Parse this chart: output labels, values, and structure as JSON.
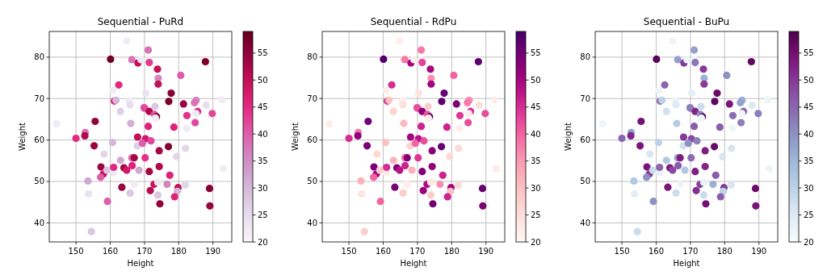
{
  "chart_data": [
    {
      "type": "scatter",
      "title": "Sequential - PuRd",
      "xlabel": "Height",
      "ylabel": "Weight",
      "xlim": [
        142.2,
        195.5
      ],
      "ylim": [
        35.4,
        86.2
      ],
      "xticks": [
        150,
        160,
        170,
        180,
        190
      ],
      "yticks": [
        40,
        50,
        60,
        70,
        80
      ],
      "clim": [
        20,
        59
      ],
      "cticks": [
        20,
        25,
        30,
        35,
        40,
        45,
        50,
        55
      ],
      "grid": true,
      "marker": "circle",
      "x": [
        150,
        152.7,
        152.6,
        155.6,
        155.3,
        144.3,
        154.5,
        153.5,
        153.7,
        158.2,
        157.3,
        158,
        157.2,
        159.2,
        159,
        160.9,
        161,
        160.7,
        160.1,
        162.5,
        160.8,
        161.2,
        161.7,
        163,
        163,
        164,
        164.8,
        163.4,
        164.8,
        165.5,
        165.8,
        166,
        166.3,
        168.1,
        165.8,
        167,
        166.3,
        167,
        166.4,
        168.4,
        167.9,
        168,
        170,
        171.1,
        169,
        171.1,
        171.4,
        173.8,
        174,
        174,
        170.4,
        177.8,
        177.1,
        181.4,
        180.6,
        187.8,
        185.1,
        184.6,
        188,
        192.6,
        185.5,
        185,
        182.4,
        189.8,
        184.8,
        182.3,
        178.6,
        173.1,
        169.9,
        171.4,
        172.9,
        173.5,
        173.2,
        171.1,
        170.3,
        171.9,
        169.4,
        177,
        174.3,
        182,
        179.4,
        170.2,
        174.3,
        171.4,
        177.4,
        172.8,
        173.9,
        176.6,
        179.8,
        179.6,
        181.9,
        189,
        178.8,
        173.9,
        171.7,
        174.5,
        189.1,
        193
      ],
      "values": [
        60.4,
        61.8,
        61,
        64.5,
        58.6,
        63.9,
        37.9,
        50.1,
        47,
        56.6,
        53.5,
        51.8,
        51,
        45.2,
        52.7,
        52.2,
        53.4,
        59.4,
        79.5,
        73.3,
        72,
        69.4,
        69.6,
        66.9,
        55.1,
        53.3,
        52.7,
        48.6,
        83.9,
        69.5,
        68.5,
        64,
        79.4,
        78.6,
        47.2,
        49.3,
        55.7,
        55.7,
        53.8,
        52.7,
        58.6,
        60.7,
        67.7,
        81.7,
        79.4,
        79.4,
        78.7,
        77.1,
        74.9,
        73.5,
        71.3,
        71.3,
        69.3,
        68.7,
        75.6,
        78.9,
        69.6,
        69,
        68.4,
        69.7,
        66.9,
        66.4,
        65.9,
        66.4,
        64.2,
        62.8,
        63.1,
        68.1,
        67.8,
        66.9,
        66.2,
        65.6,
        65.3,
        63.3,
        60.3,
        59.8,
        59.2,
        58.4,
        57.4,
        58,
        56,
        55.7,
        53.6,
        52.4,
        51.5,
        49.3,
        49.8,
        49.3,
        48.5,
        47.6,
        49.1,
        48.3,
        46.3,
        46.7,
        47.8,
        44.6,
        44.1,
        53.1
      ],
      "cvalues": [
        45,
        38,
        52,
        55,
        54,
        22,
        28,
        32,
        24,
        26,
        54,
        50,
        40,
        40,
        28,
        23,
        45,
        30,
        58,
        45,
        22,
        45,
        30,
        27,
        32,
        53,
        48,
        54,
        22,
        22,
        25,
        31,
        38,
        50,
        28,
        22,
        38,
        53,
        46,
        32,
        27,
        50,
        43,
        38,
        22,
        22,
        43,
        50,
        36,
        50,
        24,
        56,
        57,
        54,
        40,
        57,
        36,
        38,
        25,
        22,
        45,
        22,
        44,
        42,
        42,
        22,
        46,
        28,
        42,
        52,
        41,
        58,
        22,
        46,
        48,
        42,
        40,
        56,
        53,
        26,
        26,
        44,
        52,
        53,
        46,
        49,
        23,
        36,
        50,
        30,
        26,
        56,
        46,
        28,
        51,
        55,
        54,
        22
      ]
    },
    {
      "type": "scatter",
      "title": "Sequential - RdPu",
      "xlabel": "Height",
      "ylabel": "Weight",
      "xlim": [
        142.2,
        195.5
      ],
      "ylim": [
        35.4,
        86.2
      ],
      "xticks": [
        150,
        160,
        170,
        180,
        190
      ],
      "yticks": [
        40,
        50,
        60,
        70,
        80
      ],
      "clim": [
        20,
        59
      ],
      "cticks": [
        20,
        25,
        30,
        35,
        40,
        45,
        50,
        55
      ],
      "grid": true,
      "marker": "circle",
      "x": [
        150,
        152.7,
        152.6,
        155.6,
        155.3,
        144.3,
        154.5,
        153.5,
        153.7,
        158.2,
        157.3,
        158,
        157.2,
        159.2,
        159,
        160.9,
        161,
        160.7,
        160.1,
        162.5,
        160.8,
        161.2,
        161.7,
        163,
        163,
        164,
        164.8,
        163.4,
        164.8,
        165.5,
        165.8,
        166,
        166.3,
        168.1,
        165.8,
        167,
        166.3,
        167,
        166.4,
        168.4,
        167.9,
        168,
        170,
        171.1,
        169,
        171.1,
        171.4,
        173.8,
        174,
        174,
        170.4,
        177.8,
        177.1,
        181.4,
        180.6,
        187.8,
        185.1,
        184.6,
        188,
        192.6,
        185.5,
        185,
        182.4,
        189.8,
        184.8,
        182.3,
        178.6,
        173.1,
        169.9,
        171.4,
        172.9,
        173.5,
        173.2,
        171.1,
        170.3,
        171.9,
        169.4,
        177,
        174.3,
        182,
        179.4,
        170.2,
        174.3,
        171.4,
        177.4,
        172.8,
        173.9,
        176.6,
        179.8,
        179.6,
        181.9,
        189,
        178.8,
        173.9,
        171.7,
        174.5,
        189.1,
        193
      ],
      "values": [
        60.4,
        61.8,
        61,
        64.5,
        58.6,
        63.9,
        37.9,
        50.1,
        47,
        56.6,
        53.5,
        51.8,
        51,
        45.2,
        52.7,
        52.2,
        53.4,
        59.4,
        79.5,
        73.3,
        72,
        69.4,
        69.6,
        66.9,
        55.1,
        53.3,
        52.7,
        48.6,
        83.9,
        69.5,
        68.5,
        64,
        79.4,
        78.6,
        47.2,
        49.3,
        55.7,
        55.7,
        53.8,
        52.7,
        58.6,
        60.7,
        67.7,
        81.7,
        79.4,
        79.4,
        78.7,
        77.1,
        74.9,
        73.5,
        71.3,
        71.3,
        69.3,
        68.7,
        75.6,
        78.9,
        69.6,
        69,
        68.4,
        69.7,
        66.9,
        66.4,
        65.9,
        66.4,
        64.2,
        62.8,
        63.1,
        68.1,
        67.8,
        66.9,
        66.2,
        65.6,
        65.3,
        63.3,
        60.3,
        59.8,
        59.2,
        58.4,
        57.4,
        58,
        56,
        55.7,
        53.6,
        52.4,
        51.5,
        49.3,
        49.8,
        49.3,
        48.5,
        47.6,
        49.1,
        48.3,
        46.3,
        46.7,
        47.8,
        44.6,
        44.1,
        53.1
      ],
      "cvalues": [
        45,
        38,
        52,
        55,
        54,
        22,
        28,
        32,
        24,
        26,
        54,
        50,
        40,
        40,
        28,
        23,
        45,
        30,
        58,
        45,
        22,
        45,
        30,
        27,
        32,
        53,
        48,
        54,
        22,
        22,
        25,
        31,
        38,
        50,
        28,
        22,
        38,
        53,
        46,
        32,
        27,
        50,
        43,
        38,
        22,
        22,
        43,
        50,
        36,
        50,
        24,
        56,
        57,
        54,
        40,
        57,
        36,
        38,
        25,
        22,
        45,
        22,
        44,
        42,
        42,
        22,
        46,
        28,
        42,
        52,
        41,
        58,
        22,
        46,
        48,
        42,
        40,
        56,
        53,
        26,
        26,
        44,
        52,
        53,
        46,
        49,
        23,
        36,
        50,
        30,
        26,
        56,
        46,
        28,
        51,
        55,
        54,
        22
      ]
    },
    {
      "type": "scatter",
      "title": "Sequential - BuPu",
      "xlabel": "Height",
      "ylabel": "Weight",
      "xlim": [
        142.2,
        195.5
      ],
      "ylim": [
        35.4,
        86.2
      ],
      "xticks": [
        150,
        160,
        170,
        180,
        190
      ],
      "yticks": [
        40,
        50,
        60,
        70,
        80
      ],
      "clim": [
        20,
        59
      ],
      "cticks": [
        20,
        25,
        30,
        35,
        40,
        45,
        50,
        55
      ],
      "grid": true,
      "marker": "circle",
      "x": [
        150,
        152.7,
        152.6,
        155.6,
        155.3,
        144.3,
        154.5,
        153.5,
        153.7,
        158.2,
        157.3,
        158,
        157.2,
        159.2,
        159,
        160.9,
        161,
        160.7,
        160.1,
        162.5,
        160.8,
        161.2,
        161.7,
        163,
        163,
        164,
        164.8,
        163.4,
        164.8,
        165.5,
        165.8,
        166,
        166.3,
        168.1,
        165.8,
        167,
        166.3,
        167,
        166.4,
        168.4,
        167.9,
        168,
        170,
        171.1,
        169,
        171.1,
        171.4,
        173.8,
        174,
        174,
        170.4,
        177.8,
        177.1,
        181.4,
        180.6,
        187.8,
        185.1,
        184.6,
        188,
        192.6,
        185.5,
        185,
        182.4,
        189.8,
        184.8,
        182.3,
        178.6,
        173.1,
        169.9,
        171.4,
        172.9,
        173.5,
        173.2,
        171.1,
        170.3,
        171.9,
        169.4,
        177,
        174.3,
        182,
        179.4,
        170.2,
        174.3,
        171.4,
        177.4,
        172.8,
        173.9,
        176.6,
        179.8,
        179.6,
        181.9,
        189,
        178.8,
        173.9,
        171.7,
        174.5,
        189.1,
        193
      ],
      "values": [
        60.4,
        61.8,
        61,
        64.5,
        58.6,
        63.9,
        37.9,
        50.1,
        47,
        56.6,
        53.5,
        51.8,
        51,
        45.2,
        52.7,
        52.2,
        53.4,
        59.4,
        79.5,
        73.3,
        72,
        69.4,
        69.6,
        66.9,
        55.1,
        53.3,
        52.7,
        48.6,
        83.9,
        69.5,
        68.5,
        64,
        79.4,
        78.6,
        47.2,
        49.3,
        55.7,
        55.7,
        53.8,
        52.7,
        58.6,
        60.7,
        67.7,
        81.7,
        79.4,
        79.4,
        78.7,
        77.1,
        74.9,
        73.5,
        71.3,
        71.3,
        69.3,
        68.7,
        75.6,
        78.9,
        69.6,
        69,
        68.4,
        69.7,
        66.9,
        66.4,
        65.9,
        66.4,
        64.2,
        62.8,
        63.1,
        68.1,
        67.8,
        66.9,
        66.2,
        65.6,
        65.3,
        63.3,
        60.3,
        59.8,
        59.2,
        58.4,
        57.4,
        58,
        56,
        55.7,
        53.6,
        52.4,
        51.5,
        49.3,
        49.8,
        49.3,
        48.5,
        47.6,
        49.1,
        48.3,
        46.3,
        46.7,
        47.8,
        44.6,
        44.1,
        53.1
      ],
      "cvalues": [
        45,
        38,
        52,
        55,
        54,
        22,
        28,
        32,
        24,
        26,
        54,
        50,
        40,
        40,
        28,
        23,
        45,
        30,
        58,
        45,
        22,
        45,
        30,
        27,
        32,
        53,
        48,
        54,
        22,
        22,
        25,
        31,
        38,
        50,
        28,
        22,
        38,
        53,
        46,
        32,
        27,
        50,
        43,
        38,
        22,
        22,
        43,
        50,
        36,
        50,
        24,
        56,
        57,
        54,
        40,
        57,
        36,
        38,
        25,
        22,
        45,
        22,
        44,
        42,
        42,
        22,
        46,
        28,
        42,
        52,
        41,
        58,
        22,
        46,
        48,
        42,
        40,
        56,
        53,
        26,
        26,
        44,
        52,
        53,
        46,
        49,
        23,
        36,
        50,
        30,
        26,
        56,
        46,
        28,
        51,
        55,
        54,
        22
      ]
    }
  ]
}
